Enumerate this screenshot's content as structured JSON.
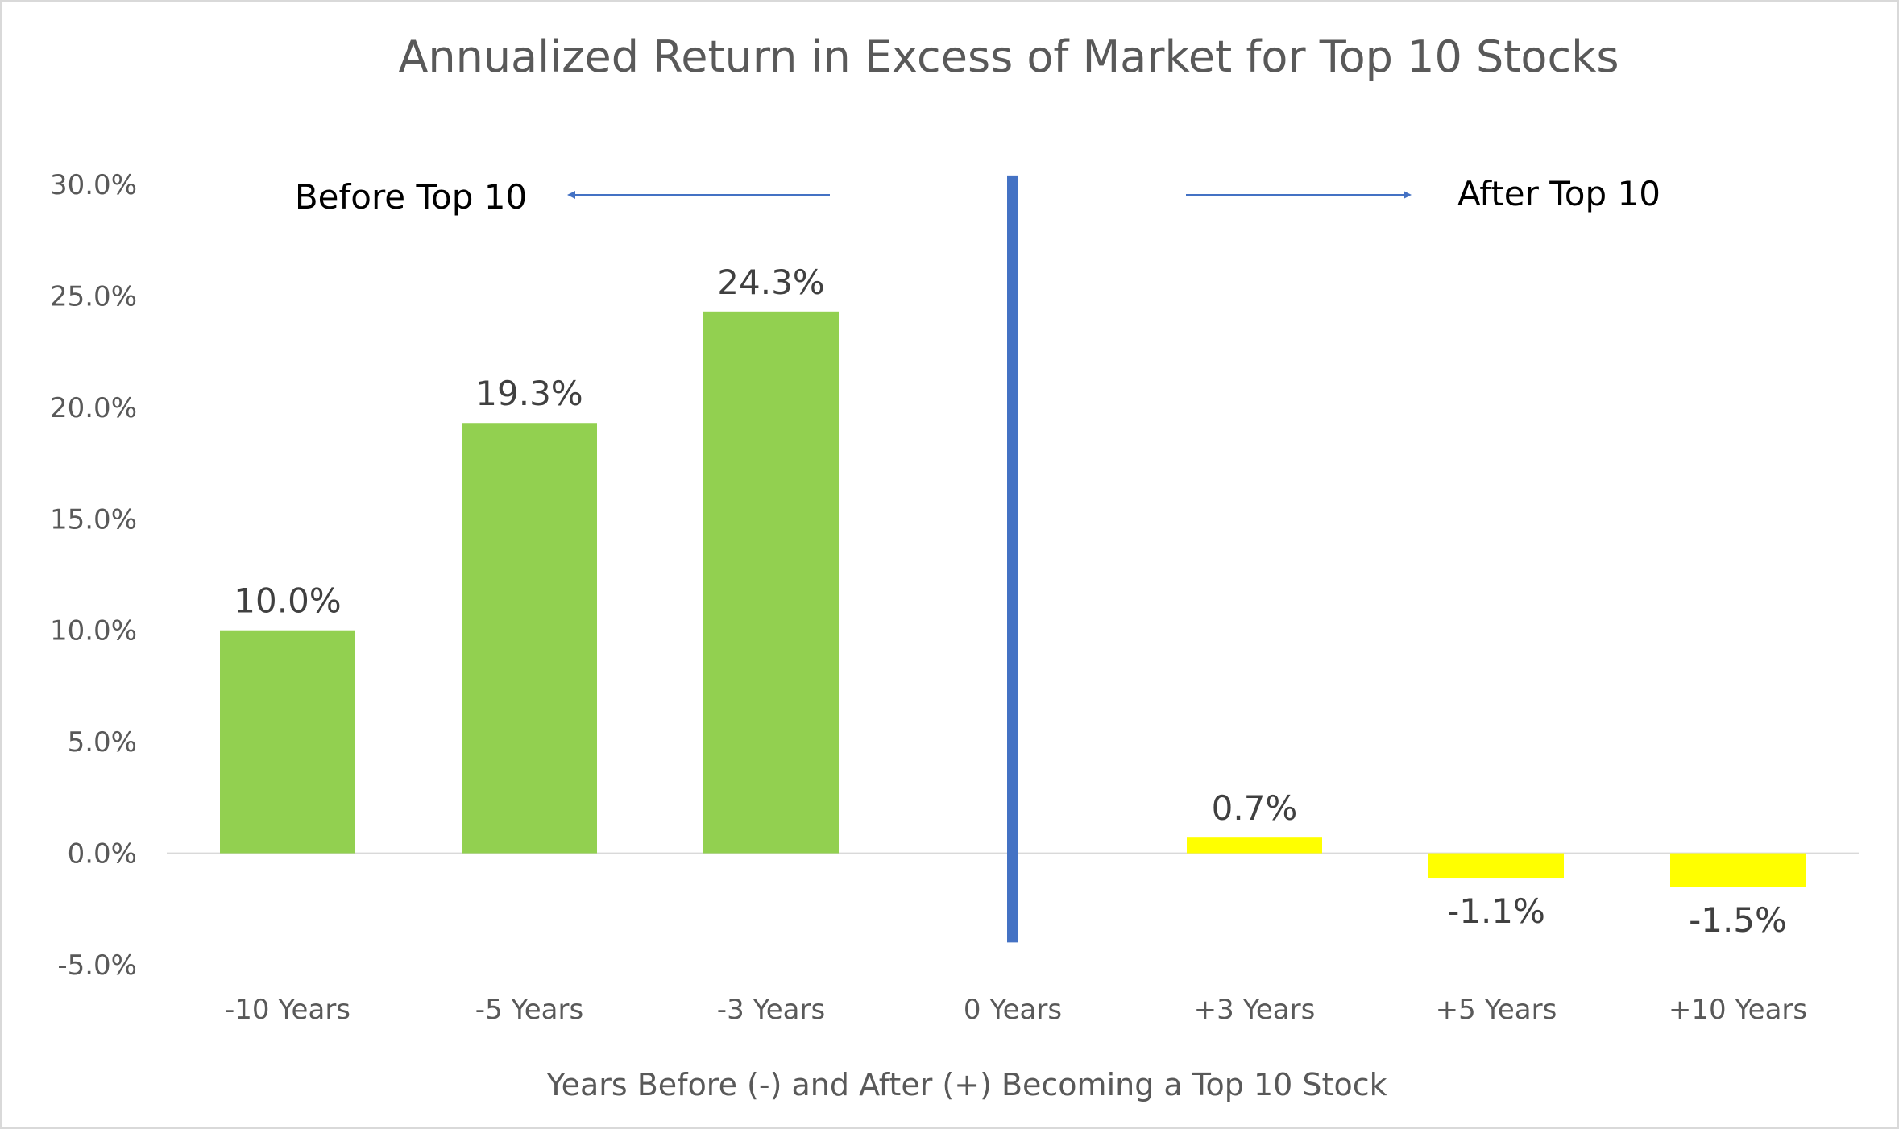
{
  "chart_data": {
    "type": "bar",
    "title": "Annualized Return in Excess of Market for Top 10 Stocks",
    "xlabel": "Years Before (-) and After (+) Becoming a Top 10 Stock",
    "ylabel": "",
    "categories": [
      "-10 Years",
      "-5 Years",
      "-3 Years",
      "0 Years",
      "+3 Years",
      "+5 Years",
      "+10 Years"
    ],
    "values": [
      10.0,
      19.3,
      24.3,
      null,
      0.7,
      -1.1,
      -1.5
    ],
    "data_labels": [
      "10.0%",
      "19.3%",
      "24.3%",
      "",
      "0.7%",
      "-1.1%",
      "-1.5%"
    ],
    "bar_colors": [
      "#92d050",
      "#92d050",
      "#92d050",
      "#92d050",
      "#ffff00",
      "#ffff00",
      "#ffff00"
    ],
    "ylim": [
      -5,
      30
    ],
    "yticks": [
      30,
      25,
      20,
      15,
      10,
      5,
      0,
      -5
    ],
    "ytick_labels": [
      "30.0%",
      "25.0%",
      "20.0%",
      "15.0%",
      "10.0%",
      "5.0%",
      "0.0%",
      "-5.0%"
    ],
    "grid": false,
    "legend": "none",
    "divider": {
      "category": "0 Years",
      "color": "#4472c4",
      "y_range": [
        30.4,
        -4.0
      ]
    },
    "annotations": [
      {
        "text": "Before Top 10",
        "arrow": "left"
      },
      {
        "text": "After Top 10",
        "arrow": "right"
      }
    ],
    "axis_color": "#d9d9d9",
    "arrow_color": "#4472c4"
  }
}
